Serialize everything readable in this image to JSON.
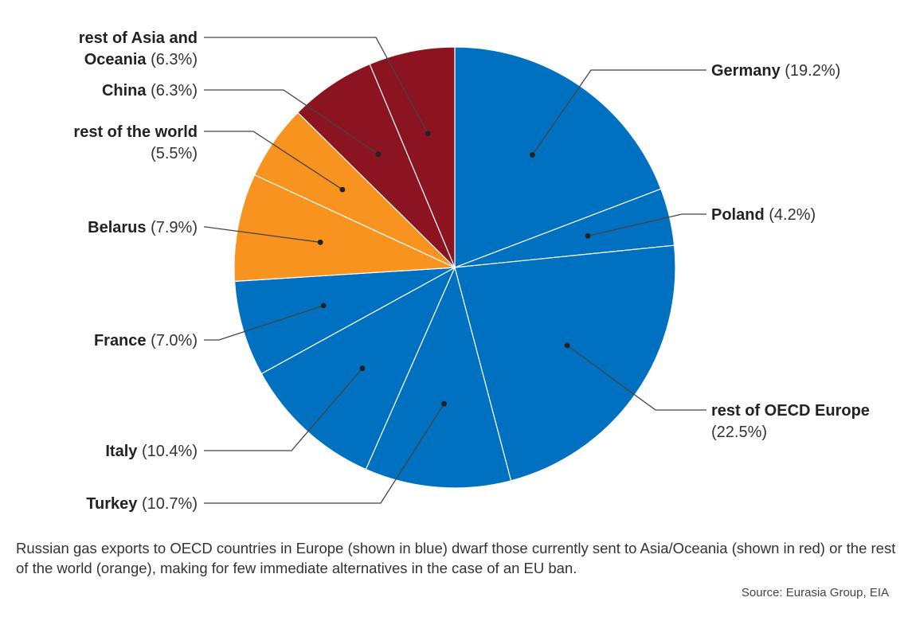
{
  "chart_data": {
    "type": "pie",
    "title": "",
    "start_angle_deg": 0,
    "direction": "clockwise",
    "slices": [
      {
        "name": "Germany",
        "value": 19.2,
        "label": "(19.2%)",
        "color": "#0070C0",
        "side": "right",
        "name_lines": [
          "Germany"
        ],
        "pct_own_line": false
      },
      {
        "name": "Poland",
        "value": 4.2,
        "label": "(4.2%)",
        "color": "#0070C0",
        "side": "right",
        "name_lines": [
          "Poland"
        ],
        "pct_own_line": false
      },
      {
        "name": "rest of OECD Europe",
        "value": 22.5,
        "label": "(22.5%)",
        "color": "#0070C0",
        "side": "right",
        "name_lines": [
          "rest of OECD Europe"
        ],
        "pct_own_line": true
      },
      {
        "name": "Turkey",
        "value": 10.7,
        "label": "(10.7%)",
        "color": "#0070C0",
        "side": "left",
        "name_lines": [
          "Turkey"
        ],
        "pct_own_line": false
      },
      {
        "name": "Italy",
        "value": 10.4,
        "label": "(10.4%)",
        "color": "#0070C0",
        "side": "left",
        "name_lines": [
          "Italy"
        ],
        "pct_own_line": false
      },
      {
        "name": "France",
        "value": 7.0,
        "label": "(7.0%)",
        "color": "#0070C0",
        "side": "left",
        "name_lines": [
          "France"
        ],
        "pct_own_line": false
      },
      {
        "name": "Belarus",
        "value": 7.9,
        "label": "(7.9%)",
        "color": "#F7931E",
        "side": "left",
        "name_lines": [
          "Belarus"
        ],
        "pct_own_line": false
      },
      {
        "name": "rest of the world",
        "value": 5.5,
        "label": "(5.5%)",
        "color": "#F7931E",
        "side": "left",
        "name_lines": [
          "rest of the world"
        ],
        "pct_own_line": true
      },
      {
        "name": "China",
        "value": 6.3,
        "label": "(6.3%)",
        "color": "#8B1420",
        "side": "left",
        "name_lines": [
          "China"
        ],
        "pct_own_line": false
      },
      {
        "name": "rest of Asia and Oceania",
        "value": 6.3,
        "label": "(6.3%)",
        "color": "#8B1420",
        "side": "left",
        "name_lines": [
          "rest of Asia and",
          "Oceania"
        ],
        "pct_own_line": false
      }
    ]
  },
  "caption": "Russian gas exports to OECD countries in Europe (shown in blue) dwarf those currently sent to Asia/Oceania (shown in red) or the rest of the world (orange), making for few immediate alternatives in the case of an EU ban.",
  "source": "Source: Eurasia Group, EIA"
}
